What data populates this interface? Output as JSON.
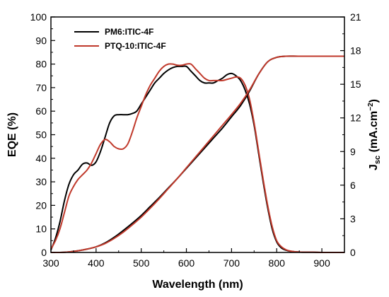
{
  "chart_data": {
    "type": "line",
    "xlabel": "Wavelength (nm)",
    "ylabel_left": "EQE (%)",
    "ylabel_right": {
      "main": "J",
      "sub": "sc",
      "rest_before_sup": " (mA.cm",
      "sup": "−2",
      "end": ")"
    },
    "xlim": [
      300,
      950
    ],
    "ylim_left": [
      0,
      100
    ],
    "ylim_right": [
      0,
      21
    ],
    "x_ticks": [
      300,
      400,
      500,
      600,
      700,
      800,
      900
    ],
    "x_tick_labels": [
      "300",
      "400",
      "500",
      "600",
      "700",
      "800",
      "900"
    ],
    "y_ticks_left": [
      0,
      10,
      20,
      30,
      40,
      50,
      60,
      70,
      80,
      90,
      100
    ],
    "y_tick_labels_left": [
      "0",
      "10",
      "20",
      "30",
      "40",
      "50",
      "60",
      "70",
      "80",
      "90",
      "100"
    ],
    "y_ticks_right": [
      0,
      3,
      6,
      9,
      12,
      15,
      18,
      21
    ],
    "y_tick_labels_right": [
      "0",
      "3",
      "6",
      "9",
      "12",
      "15",
      "18",
      "21"
    ],
    "legend_position": "top-left",
    "series": [
      {
        "name": "PM6:ITIC-4F",
        "color": "#000000",
        "axis": "left",
        "x": [
          300,
          310,
          320,
          330,
          340,
          350,
          360,
          370,
          380,
          390,
          400,
          410,
          420,
          430,
          440,
          450,
          460,
          470,
          480,
          490,
          500,
          510,
          520,
          530,
          540,
          550,
          560,
          570,
          580,
          590,
          600,
          610,
          620,
          630,
          640,
          650,
          660,
          670,
          680,
          690,
          700,
          710,
          720,
          730,
          740,
          750,
          760,
          770,
          780,
          790,
          800,
          810,
          820,
          830,
          840,
          850,
          860,
          880,
          900,
          950
        ],
        "y": [
          1,
          6,
          13,
          22,
          29,
          33,
          35,
          37.5,
          38,
          37,
          38.5,
          43,
          49,
          55,
          58,
          58.5,
          58.5,
          58.5,
          59,
          60,
          63,
          66,
          69,
          72,
          74,
          76,
          77.5,
          78.5,
          79,
          79,
          79,
          77,
          75,
          73,
          72,
          72,
          72,
          73,
          74,
          75.5,
          76,
          75,
          73,
          69,
          63,
          54,
          42,
          30,
          19,
          10,
          4.5,
          2,
          1,
          0.5,
          0.3,
          0.2,
          0.1,
          0.1,
          0,
          0
        ]
      },
      {
        "name": "PTQ-10:ITIC-4F",
        "color": "#c0392b",
        "axis": "left",
        "x": [
          300,
          310,
          320,
          330,
          340,
          350,
          360,
          370,
          380,
          390,
          400,
          410,
          420,
          430,
          440,
          450,
          460,
          470,
          480,
          490,
          500,
          510,
          520,
          530,
          540,
          550,
          560,
          570,
          580,
          590,
          600,
          610,
          620,
          630,
          640,
          650,
          660,
          670,
          680,
          690,
          700,
          710,
          720,
          730,
          740,
          750,
          760,
          770,
          780,
          790,
          800,
          810,
          820,
          830,
          840,
          850,
          860,
          880,
          900,
          950
        ],
        "y": [
          1.5,
          5,
          10,
          17,
          24,
          28,
          31,
          33,
          35,
          38,
          42,
          46,
          48,
          47,
          45,
          44,
          44,
          46,
          51,
          57,
          62,
          67,
          71,
          74,
          77,
          79,
          80,
          80,
          79.5,
          79.5,
          80,
          80,
          78,
          76,
          74,
          73,
          73,
          73,
          73,
          73.5,
          74,
          74.5,
          74,
          71,
          65,
          55,
          43,
          31,
          20,
          11,
          5,
          2.5,
          1.2,
          0.6,
          0.3,
          0.2,
          0.1,
          0.1,
          0,
          0
        ]
      },
      {
        "name": "Jsc PM6:ITIC-4F",
        "color": "#000000",
        "axis": "right",
        "x": [
          300,
          320,
          340,
          360,
          380,
          400,
          420,
          440,
          460,
          480,
          500,
          520,
          540,
          560,
          580,
          600,
          620,
          640,
          660,
          680,
          700,
          720,
          740,
          760,
          780,
          800,
          820,
          850,
          900,
          950
        ],
        "y": [
          0,
          0,
          0.05,
          0.15,
          0.3,
          0.5,
          0.85,
          1.35,
          1.95,
          2.6,
          3.3,
          4.1,
          4.9,
          5.75,
          6.6,
          7.5,
          8.4,
          9.3,
          10.2,
          11.1,
          12.1,
          13.1,
          14.4,
          15.9,
          17,
          17.4,
          17.5,
          17.5,
          17.5,
          17.5
        ]
      },
      {
        "name": "Jsc PTQ-10:ITIC-4F",
        "color": "#c0392b",
        "axis": "right",
        "x": [
          300,
          320,
          340,
          360,
          380,
          400,
          420,
          440,
          460,
          480,
          500,
          520,
          540,
          560,
          580,
          600,
          620,
          640,
          660,
          680,
          700,
          720,
          740,
          760,
          780,
          800,
          820,
          850,
          900,
          950
        ],
        "y": [
          0,
          0,
          0.05,
          0.15,
          0.3,
          0.5,
          0.8,
          1.25,
          1.8,
          2.45,
          3.15,
          3.95,
          4.8,
          5.7,
          6.6,
          7.55,
          8.5,
          9.45,
          10.4,
          11.35,
          12.3,
          13.3,
          14.5,
          15.9,
          17,
          17.4,
          17.5,
          17.5,
          17.5,
          17.5
        ]
      }
    ]
  }
}
